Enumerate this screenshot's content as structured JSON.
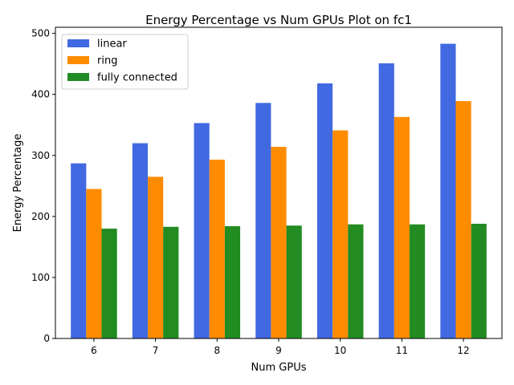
{
  "chart_data": {
    "type": "bar",
    "title": "Energy Percentage vs Num GPUs Plot on fc1",
    "xlabel": "Num GPUs",
    "ylabel": "Energy Percentage",
    "categories": [
      "6",
      "7",
      "8",
      "9",
      "10",
      "11",
      "12"
    ],
    "ylim": [
      0,
      510
    ],
    "yticks": [
      0,
      100,
      200,
      300,
      400,
      500
    ],
    "grid": false,
    "legend_position": "top-left",
    "series": [
      {
        "name": "linear",
        "color": "#4169e1",
        "values": [
          287,
          320,
          353,
          386,
          418,
          451,
          483
        ]
      },
      {
        "name": "ring",
        "color": "#ff8c00",
        "values": [
          245,
          265,
          293,
          314,
          341,
          363,
          389
        ]
      },
      {
        "name": "fully connected",
        "color": "#228b22",
        "values": [
          180,
          183,
          184,
          185,
          187,
          187,
          188
        ]
      }
    ]
  }
}
